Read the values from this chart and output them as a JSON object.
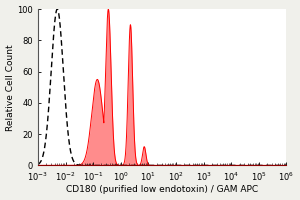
{
  "title": "",
  "xlabel": "CD180 (purified low endotoxin) / GAM APC",
  "ylabel": "Relative Cell Count",
  "xlim": [
    0.001,
    1000000.0
  ],
  "ylim": [
    0,
    100
  ],
  "yticks": [
    0,
    20,
    40,
    60,
    80,
    100
  ],
  "ytick_labels": [
    "0",
    "20",
    "40",
    "60",
    "80",
    "100"
  ],
  "background_color": "#f0f0eb",
  "plot_bg": "#ffffff",
  "dashed_color": "#000000",
  "filled_color": "#ff0000",
  "filled_alpha": 0.45,
  "dashed_peak_log10": -2.3,
  "dashed_sigma": 0.22,
  "filled_peak1_log10": -0.85,
  "filled_sigma1": 0.2,
  "filled_peak2_log10": -0.45,
  "filled_sigma2": 0.1,
  "filled_peak3_log10": 0.35,
  "filled_sigma3": 0.08,
  "filled_peak4_log10": 0.85,
  "filled_sigma4": 0.06,
  "xlabel_fontsize": 6.5,
  "ylabel_fontsize": 6.5,
  "tick_fontsize": 6
}
